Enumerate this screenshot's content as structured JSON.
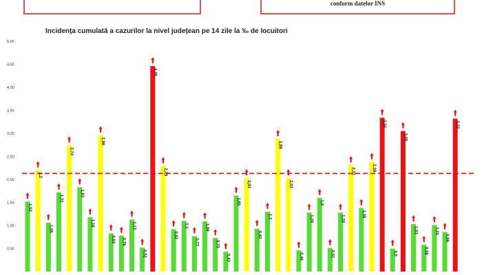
{
  "header": {
    "left_box_text": "",
    "right_box_text": "conform datelor INS"
  },
  "colors": {
    "green": "#55dd33",
    "yellow": "#ffff00",
    "red": "#ee1111",
    "threshold_line": "#dd1111",
    "arrow": "#ee1111"
  },
  "chart_data": {
    "type": "bar",
    "title": "Incidența cumulată a cazurilor la nivel județean pe 14 zile la ‰ de locuitori",
    "xlabel": "",
    "ylabel": "",
    "ylim": [
      0,
      5.0
    ],
    "y_ticks": [
      "0,50",
      "1,00",
      "1,50",
      "2,00",
      "2,50",
      "3,00",
      "3,50",
      "4,00",
      "4,50",
      "5,00"
    ],
    "threshold": 2.13,
    "threshold_style": "dashed",
    "grid": false,
    "values": [
      1.52,
      2.2,
      1.06,
      1.72,
      2.74,
      1.83,
      1.18,
      2.96,
      0.83,
      0.78,
      1.13,
      0.52,
      4.46,
      2.29,
      0.92,
      1.1,
      0.77,
      1.09,
      0.73,
      0.43,
      1.65,
      2.03,
      0.93,
      1.3,
      2.88,
      2.03,
      0.46,
      1.28,
      1.6,
      0.51,
      1.28,
      2.31,
      1.38,
      2.38,
      3.34,
      0.5,
      3.05,
      1.03,
      0.58,
      1.01,
      0.86,
      3.32
    ],
    "labels": [
      "1,52",
      "2,2",
      "1,06",
      "1,72",
      "2,74",
      "1,83",
      "1,18",
      "2,96",
      "0,83",
      "0,78",
      "1,13",
      "0,52",
      "4,46",
      "2,29",
      "0,92",
      "1,1",
      "0,77",
      "1,09",
      "0,73",
      "0,43",
      "1,65",
      "2,03",
      "0,93",
      "1,3",
      "2,88",
      "2,03",
      "0,46",
      "1,28",
      "1,6",
      "0,51",
      "1,28",
      "2,31",
      "1,38",
      "2,38",
      "3,34",
      "0,5",
      "3,05",
      "1,03",
      "0,58",
      "1,01",
      "0,86",
      "3,32"
    ],
    "bar_colors": [
      "green",
      "yellow",
      "green",
      "green",
      "yellow",
      "green",
      "green",
      "yellow",
      "green",
      "green",
      "green",
      "green",
      "red",
      "yellow",
      "green",
      "green",
      "green",
      "green",
      "green",
      "green",
      "green",
      "yellow",
      "green",
      "green",
      "yellow",
      "yellow",
      "green",
      "green",
      "green",
      "green",
      "green",
      "yellow",
      "green",
      "yellow",
      "red",
      "green",
      "red",
      "green",
      "green",
      "green",
      "green",
      "red"
    ],
    "trend_markers": "up-arrow above every bar"
  }
}
